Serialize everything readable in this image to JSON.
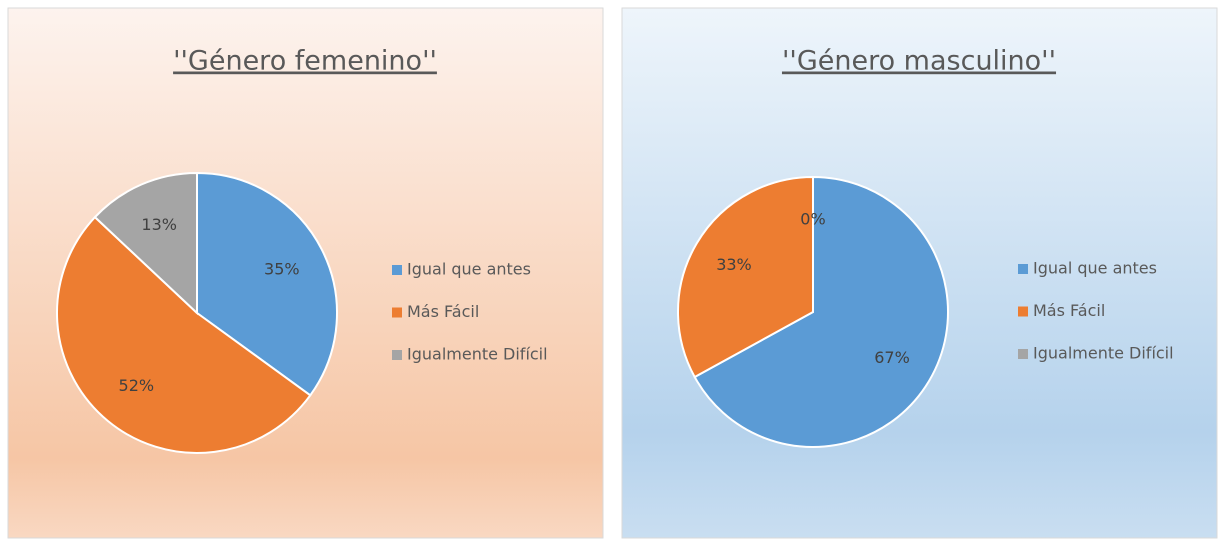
{
  "chart_data": [
    {
      "type": "pie",
      "title": "''Género femenino''",
      "categories": [
        "Igual que antes",
        "Más Fácil",
        "Igualmente Difícil"
      ],
      "values": [
        35,
        52,
        13
      ],
      "value_labels": [
        "35%",
        "52%",
        "13%"
      ],
      "colors": [
        "#5b9bd5",
        "#ed7d31",
        "#a5a5a5"
      ],
      "legend": "right"
    },
    {
      "type": "pie",
      "title": "''Género masculino''",
      "categories": [
        "Igual que antes",
        "Más Fácil",
        "Igualmente Difícil"
      ],
      "values": [
        67,
        33,
        0
      ],
      "value_labels": [
        "67%",
        "33%",
        "0%"
      ],
      "colors": [
        "#5b9bd5",
        "#ed7d31",
        "#a5a5a5"
      ],
      "legend": "right"
    }
  ]
}
